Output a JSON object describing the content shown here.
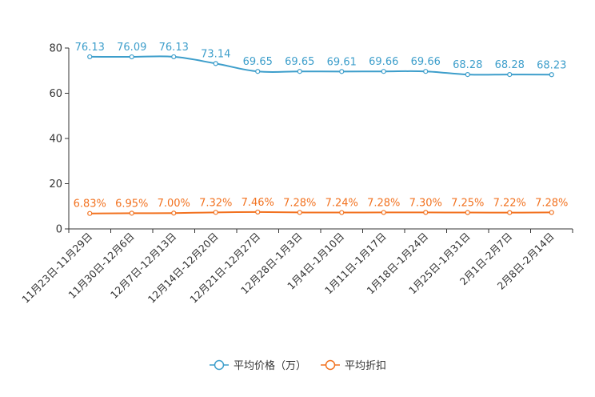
{
  "chart_data": {
    "type": "line",
    "title": "",
    "xlabel": "",
    "ylabel": "",
    "ylim": [
      0,
      80
    ],
    "yticks": [
      0,
      20,
      40,
      60,
      80
    ],
    "grid": false,
    "legend_position": "bottom-center",
    "categories": [
      "11月23日-11月29日",
      "11月30日-12月6日",
      "12月7日-12月13日",
      "12月14日-12月20日",
      "12月21日-12月27日",
      "12月28日-1月3日",
      "1月4日-1月10日",
      "1月11日-1月17日",
      "1月18日-1月24日",
      "1月25日-1月31日",
      "2月1日-2月7日",
      "2月8日-2月14日"
    ],
    "series": [
      {
        "name": "平均价格（万）",
        "color": "#3d9ecb",
        "values": [
          76.13,
          76.09,
          76.13,
          73.14,
          69.65,
          69.65,
          69.61,
          69.66,
          69.66,
          68.28,
          68.28,
          68.23
        ],
        "labels": [
          "76.13",
          "76.09",
          "76.13",
          "73.14",
          "69.65",
          "69.65",
          "69.61",
          "69.66",
          "69.66",
          "68.28",
          "68.28",
          "68.23"
        ]
      },
      {
        "name": "平均折扣",
        "color": "#f27220",
        "values": [
          6.83,
          6.95,
          7.0,
          7.32,
          7.46,
          7.28,
          7.24,
          7.28,
          7.3,
          7.25,
          7.22,
          7.28
        ],
        "labels": [
          "6.83%",
          "6.95%",
          "7.00%",
          "7.32%",
          "7.46%",
          "7.28%",
          "7.24%",
          "7.28%",
          "7.30%",
          "7.25%",
          "7.22%",
          "7.28%"
        ]
      }
    ]
  }
}
